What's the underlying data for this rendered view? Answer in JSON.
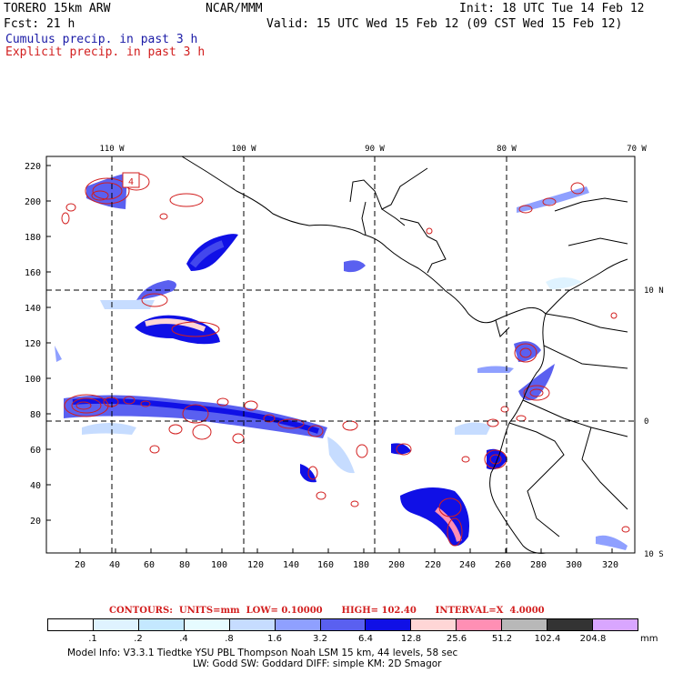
{
  "header": {
    "model": "TORERO  15km ARW",
    "org": "NCAR/MMM",
    "init": "Init: 18 UTC Tue 14 Feb 12",
    "fcst": "Fcst:   21 h",
    "valid": "Valid: 15 UTC Wed 15 Feb 12 (09 CST Wed 15 Feb 12)",
    "cumulus": "Cumulus precip. in past 3 h",
    "explicit": "Explicit precip. in past 3 h"
  },
  "map": {
    "lon_labels": [
      "110 W",
      "100 W",
      "90 W",
      "80 W",
      "70 W"
    ],
    "lat_labels": [
      "10 N",
      "0",
      "10 S"
    ],
    "y_ticks": [
      "220",
      "200",
      "180",
      "160",
      "140",
      "120",
      "100",
      "80",
      "60",
      "40",
      "20"
    ],
    "x_ticks": [
      "20",
      "40",
      "60",
      "80",
      "100",
      "120",
      "140",
      "160",
      "180",
      "200",
      "220",
      "240",
      "260",
      "280",
      "300",
      "320"
    ],
    "box_label": "4"
  },
  "contours_line": "CONTOURS:  UNITS=mm  LOW= 0.10000      HIGH= 102.40      INTERVAL=X  4.0000",
  "legend": {
    "colors": [
      "#ffffff",
      "#dff3ff",
      "#c4e8ff",
      "#e6fbff",
      "#c6dcff",
      "#8fa0ff",
      "#5a60f0",
      "#1010e6",
      "#ffd6d6",
      "#ff8fb4",
      "#b8b8b8",
      "#333333",
      "#d9a6ff"
    ],
    "labels": [
      ".1",
      ".2",
      ".4",
      ".8",
      "1.6",
      "3.2",
      "6.4",
      "12.8",
      "25.6",
      "51.2",
      "102.4",
      "204.8",
      "mm"
    ]
  },
  "footer": {
    "line1": "Model Info: V3.3.1    Tiedtke YSU PBL  Thompson    Noah LSM  15 km,    44 levels,    58 sec",
    "line2": "LW: Godd SW: Goddard DIFF: simple KM: 2D Smagor"
  }
}
